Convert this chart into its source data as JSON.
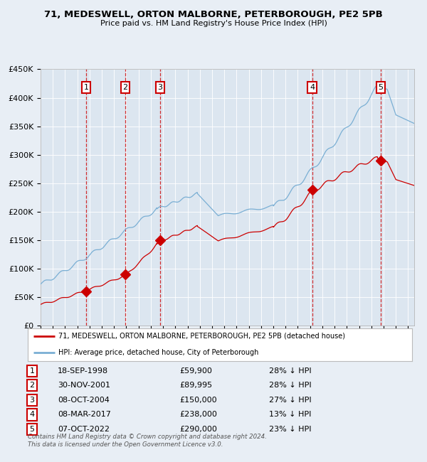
{
  "title1": "71, MEDESWELL, ORTON MALBORNE, PETERBOROUGH, PE2 5PB",
  "title2": "Price paid vs. HM Land Registry's House Price Index (HPI)",
  "xlim_start": 1995.0,
  "xlim_end": 2025.5,
  "ylim_min": 0,
  "ylim_max": 450000,
  "yticks": [
    0,
    50000,
    100000,
    150000,
    200000,
    250000,
    300000,
    350000,
    400000,
    450000
  ],
  "ytick_labels": [
    "£0",
    "£50K",
    "£100K",
    "£150K",
    "£200K",
    "£250K",
    "£300K",
    "£350K",
    "£400K",
    "£450K"
  ],
  "sale_dates_decimal": [
    1998.72,
    2001.92,
    2004.77,
    2017.18,
    2022.77
  ],
  "sale_prices": [
    59900,
    89995,
    150000,
    238000,
    290000
  ],
  "sale_labels": [
    "1",
    "2",
    "3",
    "4",
    "5"
  ],
  "legend_sale_label": "71, MEDESWELL, ORTON MALBORNE, PETERBOROUGH, PE2 5PB (detached house)",
  "legend_hpi_label": "HPI: Average price, detached house, City of Peterborough",
  "sale_color": "#cc0000",
  "hpi_color": "#7aafd4",
  "table_rows": [
    [
      "1",
      "18-SEP-1998",
      "£59,900",
      "28% ↓ HPI"
    ],
    [
      "2",
      "30-NOV-2001",
      "£89,995",
      "28% ↓ HPI"
    ],
    [
      "3",
      "08-OCT-2004",
      "£150,000",
      "27% ↓ HPI"
    ],
    [
      "4",
      "08-MAR-2017",
      "£238,000",
      "13% ↓ HPI"
    ],
    [
      "5",
      "07-OCT-2022",
      "£290,000",
      "23% ↓ HPI"
    ]
  ],
  "footnote1": "Contains HM Land Registry data © Crown copyright and database right 2024.",
  "footnote2": "This data is licensed under the Open Government Licence v3.0.",
  "background_color": "#e8eef5",
  "plot_bg_color": "#dce6f0"
}
